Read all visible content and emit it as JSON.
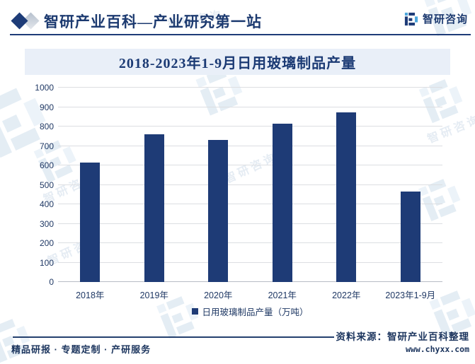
{
  "header": {
    "title": "智研产业百科—产业研究第一站",
    "logo_text": "智研咨询"
  },
  "watermark": {
    "text": "智研咨询"
  },
  "chart_data": {
    "type": "bar",
    "title": "2018-2023年1-9月日用玻璃制品产量",
    "categories": [
      "2018年",
      "2019年",
      "2020年",
      "2021年",
      "2022年",
      "2023年1-9月"
    ],
    "values": [
      615,
      761,
      732,
      815,
      873,
      466
    ],
    "series_name": "日用玻璃制品产量（万吨）",
    "unit": "万吨",
    "ylim": [
      0,
      1000
    ],
    "yticks": [
      0,
      100,
      200,
      300,
      400,
      500,
      600,
      700,
      800,
      900,
      1000
    ],
    "grid": true,
    "legend_position": "bottom",
    "bar_color": "#1e3b76"
  },
  "footer": {
    "services": "精品研报 · 专题定制 · 产研服务",
    "source_label": "资料来源：智研产业百科整理",
    "website": "www.chyxx.com"
  },
  "colors": {
    "accent_navy": "#1e3c78",
    "banner_bg": "#e9eff8",
    "gridline": "#dcdee2",
    "logo_light_blue": "#4da7dc",
    "watermark": "#dde6f0"
  }
}
